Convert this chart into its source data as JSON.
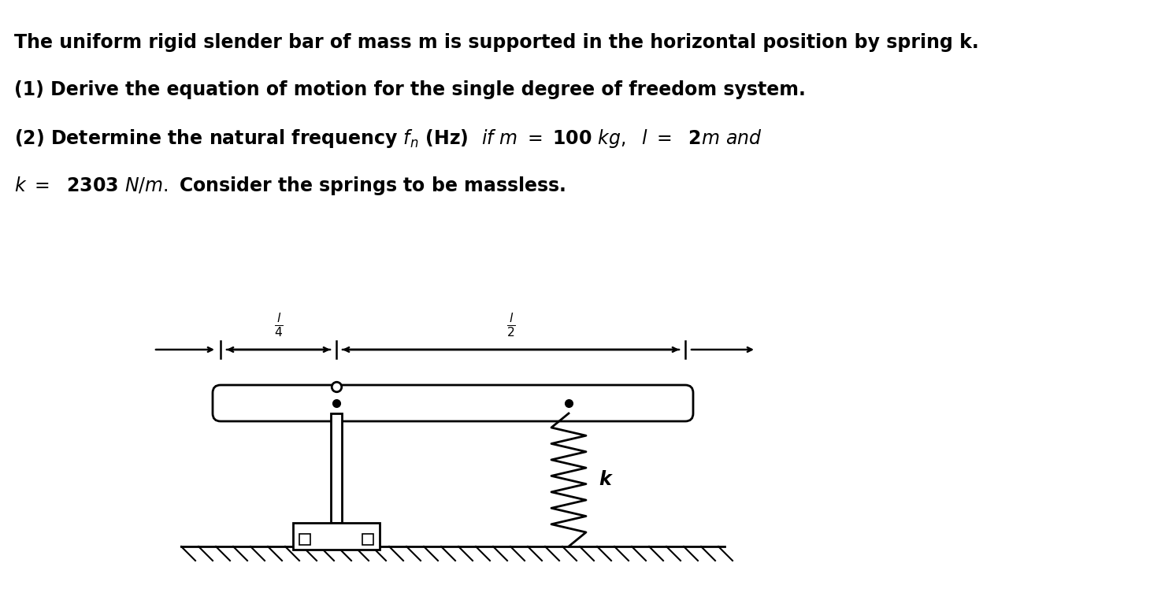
{
  "background_color": "#ffffff",
  "text_line1": "The uniform rigid slender bar of mass m is supported in the horizontal position by spring k.",
  "text_line2": "(1) Derive the equation of motion for the single degree of freedom system.",
  "text_line3": "(2) Determine the natural frequency $f_n$ (Hz)  $if\\ m\\ =\\ $ 100 $kg,\\ \\ l\\ =\\ $ 2$m\\ and$",
  "text_line4": "$k\\ =\\ $ 2303 $N/m.$ Consider the springs to be massless.",
  "diagram_label_k": "k",
  "fig_width": 14.74,
  "fig_height": 7.62,
  "dpi": 100
}
